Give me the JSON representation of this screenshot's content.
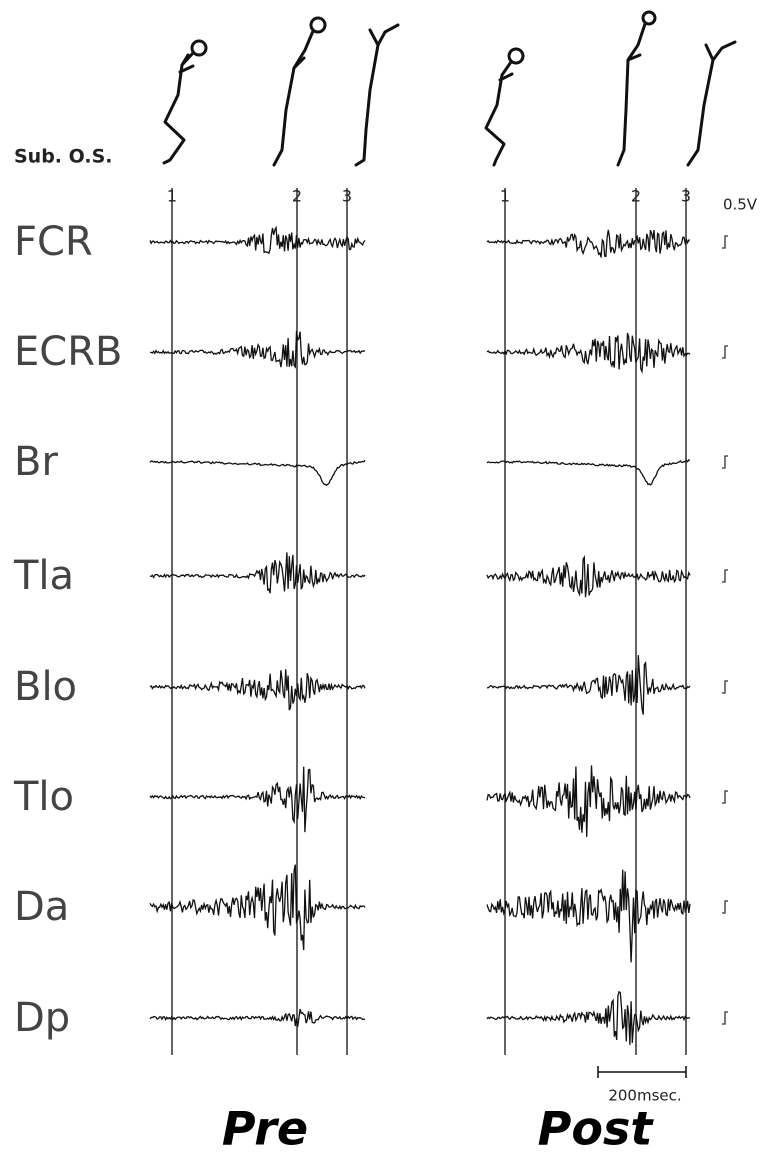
{
  "subject": "Sub. O.S.",
  "muscles": [
    "FCR",
    "ECRB",
    "Br",
    "Tla",
    "Blo",
    "Tlo",
    "Da",
    "Dp"
  ],
  "panels": [
    {
      "label": "Pre",
      "markers": [
        "1",
        "2",
        "3"
      ]
    },
    {
      "label": "Post",
      "markers": [
        "1",
        "2",
        "3"
      ]
    }
  ],
  "scale": {
    "voltage": "0.5V",
    "time": "200msec."
  }
}
